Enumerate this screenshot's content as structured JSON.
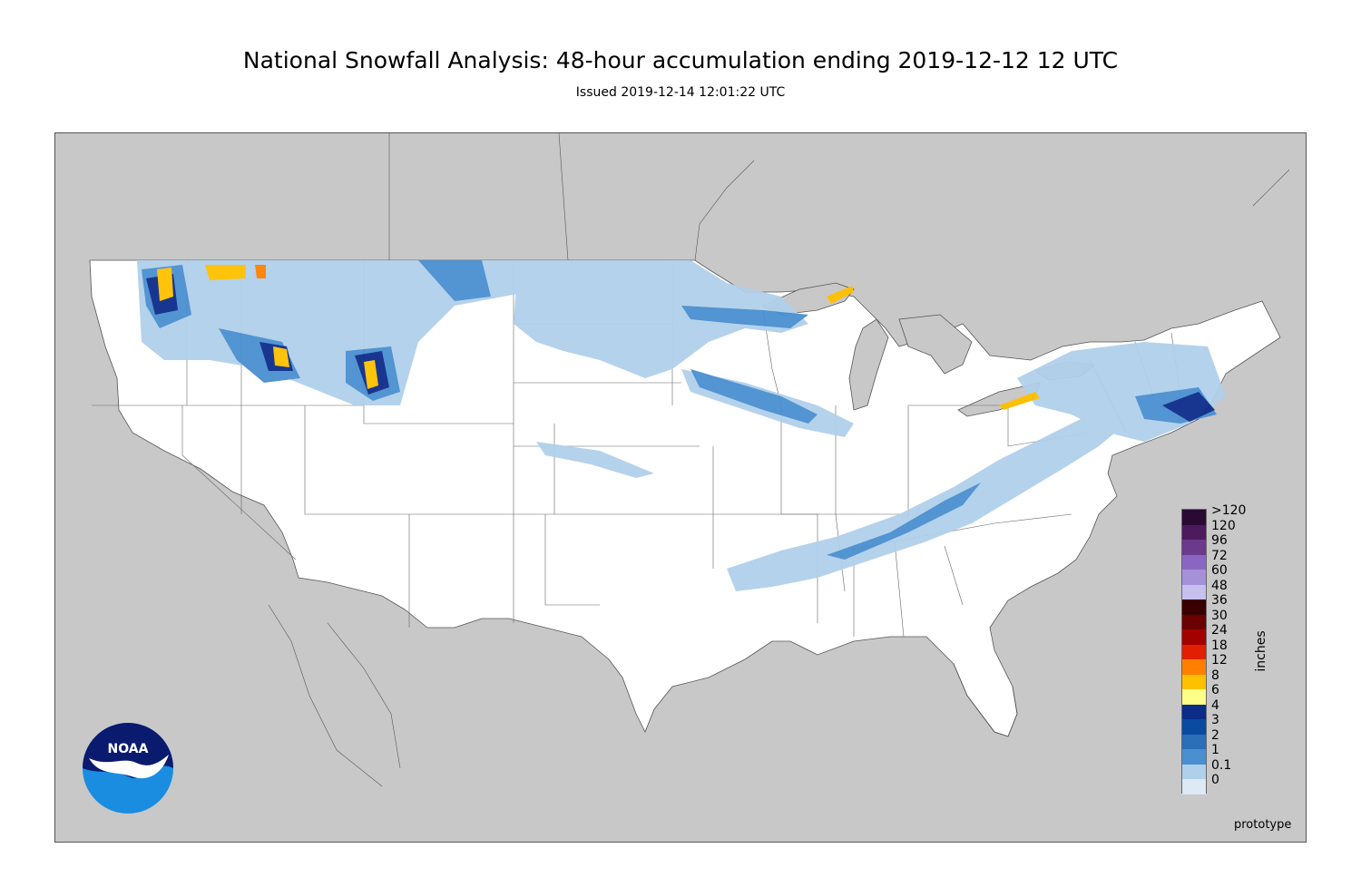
{
  "header": {
    "title": "National Snowfall Analysis: 48-hour accumulation ending 2019-12-12 12 UTC",
    "subtitle": "Issued 2019-12-14 12:01:22 UTC"
  },
  "legend": {
    "unit": "inches",
    "items": [
      {
        "label": ">120",
        "color": "#2a0a33"
      },
      {
        "label": "120",
        "color": "#4d1a5e"
      },
      {
        "label": "96",
        "color": "#6a3a8c"
      },
      {
        "label": "72",
        "color": "#8a66c2"
      },
      {
        "label": "60",
        "color": "#a591d8"
      },
      {
        "label": "48",
        "color": "#c6c0ef"
      },
      {
        "label": "36",
        "color": "#3a0000"
      },
      {
        "label": "30",
        "color": "#6b0000"
      },
      {
        "label": "24",
        "color": "#a30000"
      },
      {
        "label": "18",
        "color": "#e02000"
      },
      {
        "label": "12",
        "color": "#ff8000"
      },
      {
        "label": "8",
        "color": "#ffc000"
      },
      {
        "label": "6",
        "color": "#ffff88"
      },
      {
        "label": "4",
        "color": "#0c2c8a"
      },
      {
        "label": "3",
        "color": "#0a4aa0"
      },
      {
        "label": "2",
        "color": "#2a6fb8"
      },
      {
        "label": "1",
        "color": "#4a8fd0"
      },
      {
        "label": "0.1",
        "color": "#b0d0ea"
      },
      {
        "label": "0",
        "color": "#dde9f5"
      }
    ],
    "base_color": "#ffffff"
  },
  "footer": {
    "note": "prototype"
  },
  "logo": {
    "name": "noaa-logo",
    "text": "NOAA",
    "colors": {
      "dark": "#0a1a6e",
      "light": "#1a8de0"
    }
  },
  "map_colors": {
    "land_outside": "#c8c8c8",
    "conus": "#ffffff",
    "water": "#c8c8c8"
  }
}
